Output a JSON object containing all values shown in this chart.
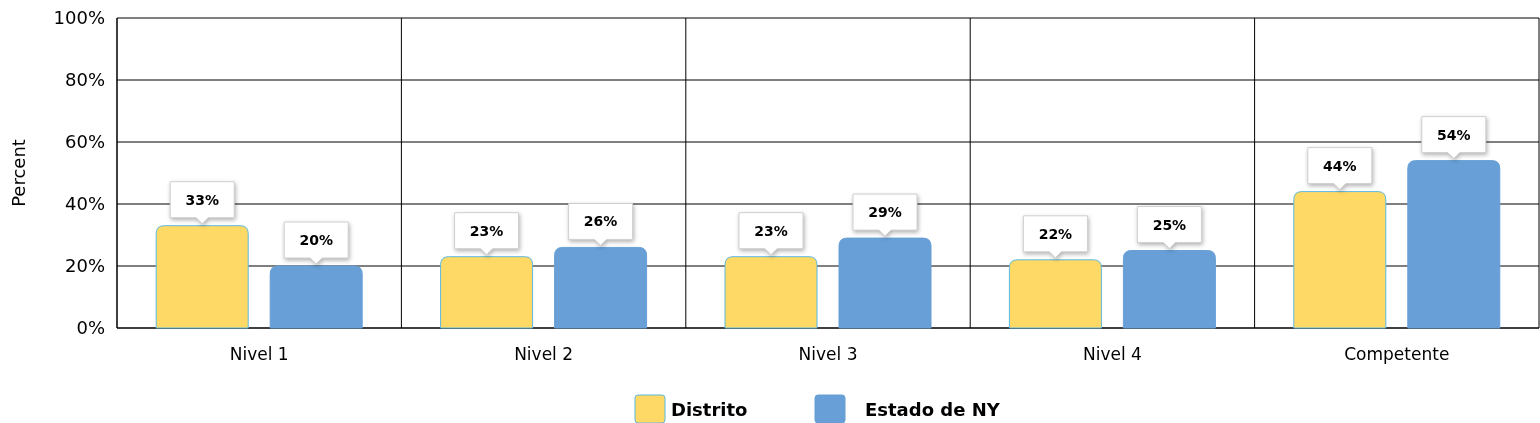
{
  "chart_data": {
    "type": "bar",
    "ylabel": "Percent",
    "categories": [
      "Nivel 1",
      "Nivel 2",
      "Nivel 3",
      "Nivel 4",
      "Competente"
    ],
    "series": [
      {
        "name": "Distrito",
        "color": "#ffd966",
        "values": [
          33,
          23,
          23,
          22,
          44
        ],
        "value_labels": [
          "33%",
          "23%",
          "23%",
          "22%",
          "44%"
        ]
      },
      {
        "name": "Estado de NY",
        "color": "#679fd6",
        "values": [
          20,
          26,
          29,
          25,
          54
        ],
        "value_labels": [
          "20%",
          "26%",
          "29%",
          "25%",
          "54%"
        ]
      }
    ],
    "ylim": [
      0,
      100
    ],
    "yticks": [
      {
        "value": 0,
        "label": "0%"
      },
      {
        "value": 20,
        "label": "20%"
      },
      {
        "value": 40,
        "label": "40%"
      },
      {
        "value": 60,
        "label": "60%"
      },
      {
        "value": 80,
        "label": "80%"
      },
      {
        "value": 100,
        "label": "100%"
      }
    ],
    "grid": true,
    "legend": "bottom"
  }
}
